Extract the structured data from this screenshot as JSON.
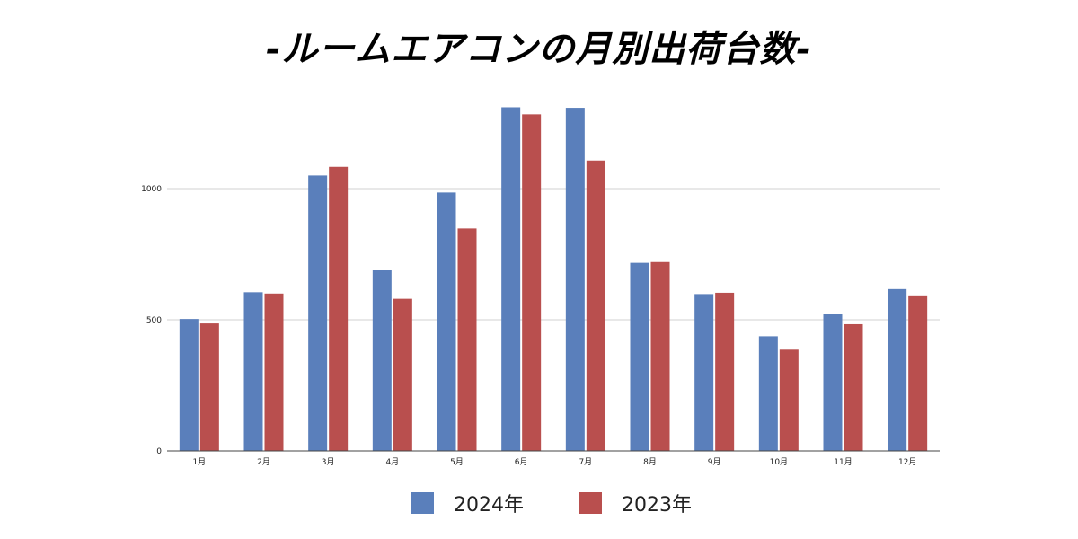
{
  "chart_data": {
    "type": "bar",
    "title": "-ルームエアコンの月別出荷台数-",
    "xlabel": "",
    "ylabel": "",
    "categories": [
      "1月",
      "2月",
      "3月",
      "4月",
      "5月",
      "6月",
      "7月",
      "8月",
      "9月",
      "10月",
      "11月",
      "12月"
    ],
    "series": [
      {
        "name": "2024年",
        "color": "#5a7fbb",
        "values": [
          503,
          605,
          1050,
          690,
          985,
          1310,
          1308,
          717,
          598,
          437,
          523,
          617
        ]
      },
      {
        "name": "2023年",
        "color": "#b94f4e",
        "values": [
          486,
          600,
          1083,
          580,
          848,
          1283,
          1107,
          720,
          603,
          386,
          483,
          593
        ]
      }
    ],
    "yticks": [
      0,
      500,
      1000
    ],
    "ylim": [
      0,
      1370
    ],
    "grid": true,
    "legend_position": "bottom"
  }
}
